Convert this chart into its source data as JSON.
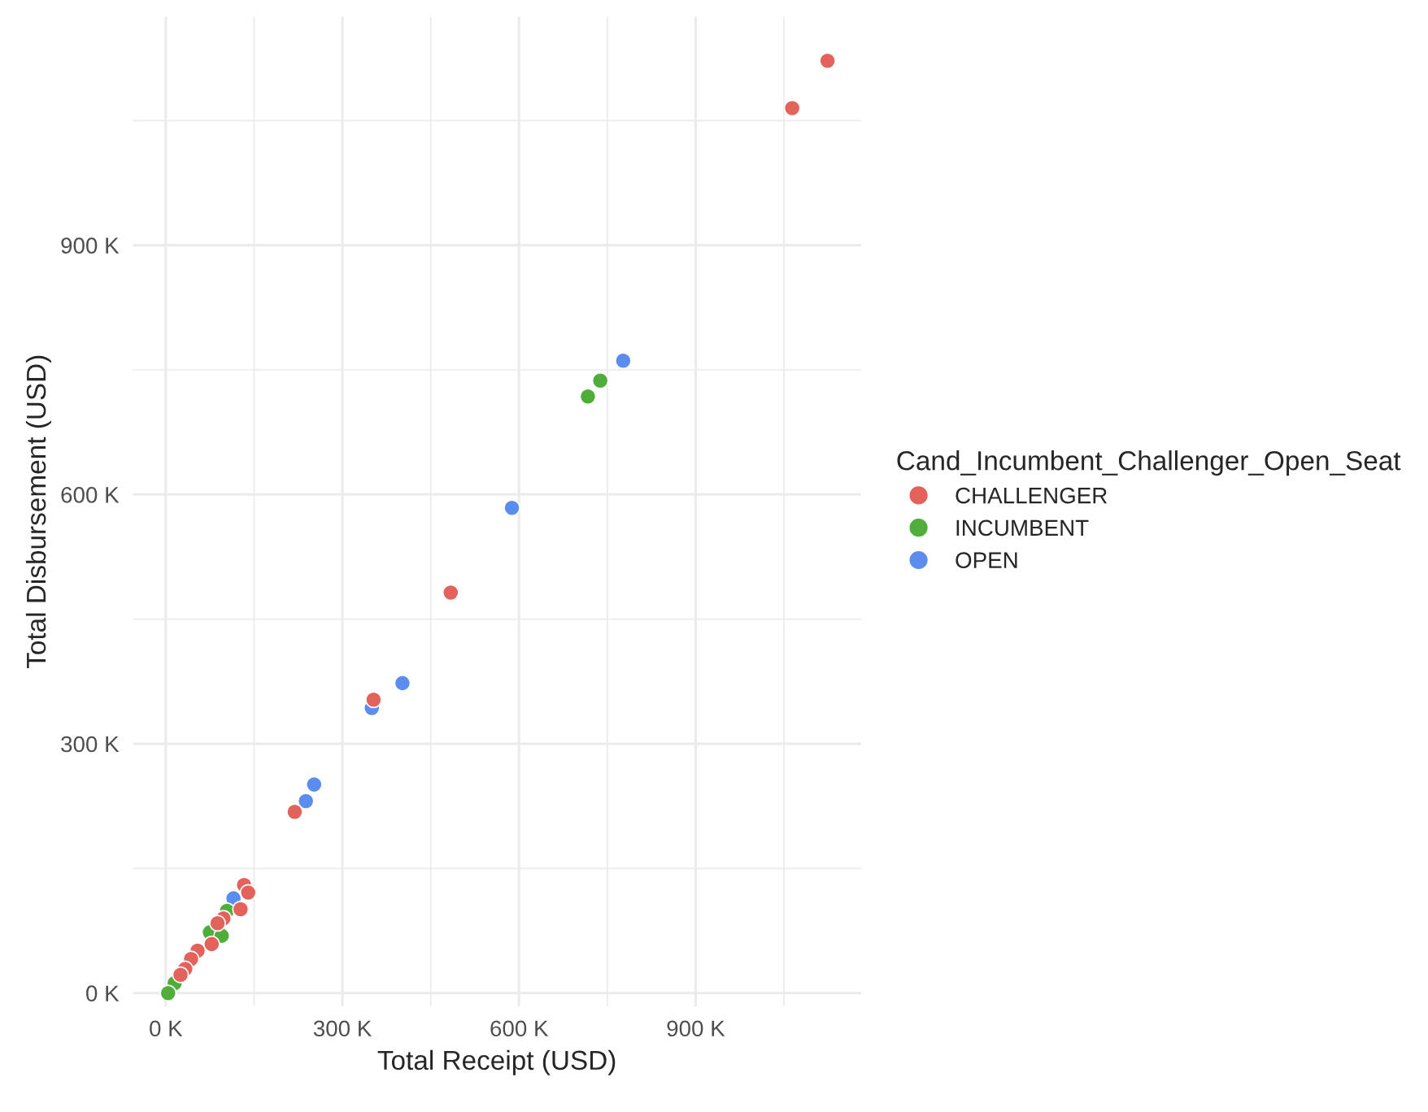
{
  "chart_data": {
    "type": "scatter",
    "xlabel": "Total Receipt (USD)",
    "ylabel": "Total Disbursement (USD)",
    "legend_title": "Cand_Incumbent_Challenger_Open_Seat",
    "legend": "right",
    "grid": true,
    "marker": "circle",
    "xlim": [
      -56,
      1181
    ],
    "ylim": [
      -16,
      1175
    ],
    "xticks": [
      {
        "value": 0,
        "label": "0 K"
      },
      {
        "value": 300,
        "label": "300 K"
      },
      {
        "value": 600,
        "label": "600 K"
      },
      {
        "value": 900,
        "label": "900 K"
      }
    ],
    "yticks": [
      {
        "value": 0,
        "label": "0 K"
      },
      {
        "value": 300,
        "label": "300 K"
      },
      {
        "value": 600,
        "label": "600 K"
      },
      {
        "value": 900,
        "label": "900 K"
      }
    ],
    "series": [
      {
        "name": "CHALLENGER",
        "color": "#e3625b",
        "x": [
          1124,
          1064,
          484,
          353,
          219,
          133,
          140,
          127,
          98,
          88,
          78,
          54,
          43,
          33,
          25
        ],
        "values": [
          1122,
          1065,
          482,
          353,
          218,
          130,
          121,
          101,
          90,
          84,
          59,
          51,
          41,
          29,
          22
        ]
      },
      {
        "name": "INCUMBENT",
        "color": "#4fad3c",
        "x": [
          738,
          717,
          104,
          75,
          95,
          15,
          4
        ],
        "values": [
          737,
          718,
          99,
          73,
          69,
          12,
          0
        ]
      },
      {
        "name": "OPEN",
        "color": "#5b8def",
        "x": [
          777,
          588,
          402,
          350,
          252,
          238,
          115
        ],
        "values": [
          761,
          584,
          373,
          343,
          251,
          231,
          114
        ]
      }
    ]
  }
}
